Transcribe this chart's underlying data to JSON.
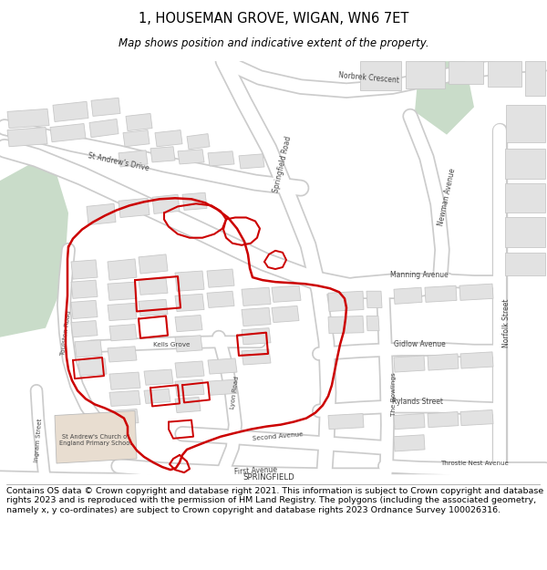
{
  "title": "1, HOUSEMAN GROVE, WIGAN, WN6 7ET",
  "subtitle": "Map shows position and indicative extent of the property.",
  "footer": "Contains OS data © Crown copyright and database right 2021. This information is subject to Crown copyright and database rights 2023 and is reproduced with the permission of HM Land Registry. The polygons (including the associated geometry, namely x, y co-ordinates) are subject to Crown copyright and database rights 2023 Ordnance Survey 100026316.",
  "bg_color": "#ffffff",
  "map_bg": "#f0f0f0",
  "road_color": "#ffffff",
  "road_outline": "#cccccc",
  "building_color": "#e2e2e2",
  "building_outline": "#c8c8c8",
  "green_color": "#c9dcc9",
  "red_color": "#cc0000",
  "beige_color": "#e8ddd0",
  "title_fontsize": 10.5,
  "subtitle_fontsize": 8.5,
  "footer_fontsize": 6.8
}
